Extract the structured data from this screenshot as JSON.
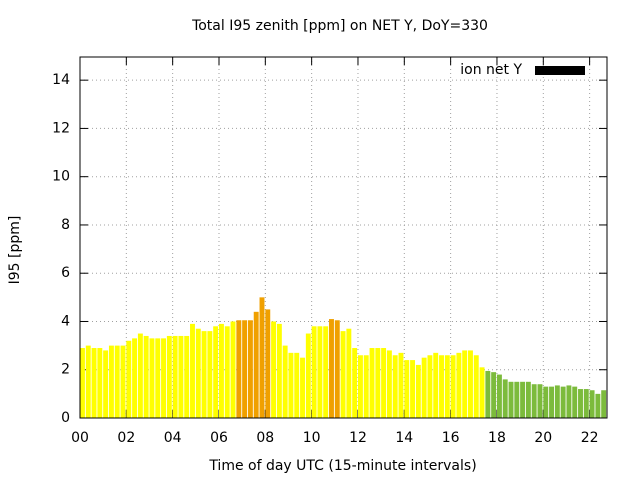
{
  "chart_data": {
    "type": "bar",
    "title": "Total I95 zenith [ppm] on NET Y, DoY=330",
    "x_label": "Time of day UTC (15-minute intervals)",
    "y_label": "I95 [ppm]",
    "x": [
      0,
      0.25,
      0.5,
      0.75,
      1,
      1.25,
      1.5,
      1.75,
      2,
      2.25,
      2.5,
      2.75,
      3,
      3.25,
      3.5,
      3.75,
      4,
      4.25,
      4.5,
      4.75,
      5,
      5.25,
      5.5,
      5.75,
      6,
      6.25,
      6.5,
      6.75,
      7,
      7.25,
      7.5,
      7.75,
      8,
      8.25,
      8.5,
      8.75,
      9,
      9.25,
      9.5,
      9.75,
      10,
      10.25,
      10.5,
      10.75,
      11,
      11.25,
      11.5,
      11.75,
      12,
      12.25,
      12.5,
      12.75,
      13,
      13.25,
      13.5,
      13.75,
      14,
      14.25,
      14.5,
      14.75,
      15,
      15.25,
      15.5,
      15.75,
      16,
      16.25,
      16.5,
      16.75,
      17,
      17.25,
      17.5,
      17.75,
      18,
      18.25,
      18.5,
      18.75,
      19,
      19.25,
      19.5,
      19.75,
      20,
      20.25,
      20.5,
      20.75,
      21,
      21.25,
      21.5,
      21.75,
      22,
      22.25,
      22.5
    ],
    "series": [
      {
        "name": "ion net Y",
        "color": "#000000",
        "values": [
          2.9,
          3.0,
          2.9,
          2.9,
          2.8,
          3.0,
          3.0,
          3.0,
          3.2,
          3.3,
          3.5,
          3.4,
          3.3,
          3.3,
          3.3,
          3.4,
          3.4,
          3.4,
          3.4,
          3.9,
          3.7,
          3.6,
          3.6,
          3.8,
          3.9,
          3.8,
          4.0,
          4.05,
          4.05,
          4.05,
          4.4,
          5.0,
          4.5,
          4.0,
          3.9,
          3.0,
          2.7,
          2.7,
          2.5,
          3.5,
          3.8,
          3.8,
          3.8,
          4.1,
          4.05,
          3.6,
          3.7,
          2.9,
          2.6,
          2.6,
          2.9,
          2.9,
          2.9,
          2.8,
          2.6,
          2.7,
          2.4,
          2.4,
          2.2,
          2.5,
          2.6,
          2.7,
          2.6,
          2.6,
          2.6,
          2.7,
          2.8,
          2.8,
          2.6,
          2.1,
          1.95,
          1.9,
          1.8,
          1.6,
          1.5,
          1.5,
          1.5,
          1.5,
          1.4,
          1.4,
          1.3,
          1.3,
          1.35,
          1.3,
          1.35,
          1.3,
          1.2,
          1.2,
          1.15,
          1.0,
          1.15
        ],
        "colors": [
          "#ffff00",
          "#ffff00",
          "#ffff00",
          "#ffff00",
          "#ffff00",
          "#ffff00",
          "#ffff00",
          "#ffff00",
          "#ffff00",
          "#ffff00",
          "#ffff00",
          "#ffff00",
          "#ffff00",
          "#ffff00",
          "#ffff00",
          "#ffff00",
          "#ffff00",
          "#ffff00",
          "#ffff00",
          "#ffff00",
          "#ffff00",
          "#ffff00",
          "#ffff00",
          "#ffff00",
          "#ffff00",
          "#ffff00",
          "#ffff00",
          "#f0a000",
          "#f0a000",
          "#f0a000",
          "#f0a000",
          "#f0a000",
          "#f0a000",
          "#ffff00",
          "#ffff00",
          "#ffff00",
          "#ffff00",
          "#ffff00",
          "#ffff00",
          "#ffff00",
          "#ffff00",
          "#ffff00",
          "#ffff00",
          "#f0a000",
          "#f0a000",
          "#ffff00",
          "#ffff00",
          "#ffff00",
          "#ffff00",
          "#ffff00",
          "#ffff00",
          "#ffff00",
          "#ffff00",
          "#ffff00",
          "#ffff00",
          "#ffff00",
          "#ffff00",
          "#ffff00",
          "#ffff00",
          "#ffff00",
          "#ffff00",
          "#ffff00",
          "#ffff00",
          "#ffff00",
          "#ffff00",
          "#ffff00",
          "#ffff00",
          "#ffff00",
          "#ffff00",
          "#ffff00",
          "#7cbb3c",
          "#7cbb3c",
          "#7cbb3c",
          "#7cbb3c",
          "#7cbb3c",
          "#7cbb3c",
          "#7cbb3c",
          "#7cbb3c",
          "#7cbb3c",
          "#7cbb3c",
          "#7cbb3c",
          "#7cbb3c",
          "#7cbb3c",
          "#7cbb3c",
          "#7cbb3c",
          "#7cbb3c",
          "#7cbb3c",
          "#7cbb3c",
          "#7cbb3c",
          "#7cbb3c",
          "#7cbb3c"
        ]
      }
    ],
    "xlim": [
      0,
      22.75
    ],
    "xticks": [
      {
        "value": 0,
        "label": "00"
      },
      {
        "value": 2,
        "label": "02"
      },
      {
        "value": 4,
        "label": "04"
      },
      {
        "value": 6,
        "label": "06"
      },
      {
        "value": 8,
        "label": "08"
      },
      10,
      12,
      14,
      16,
      18,
      20,
      22
    ],
    "ylim": [
      0,
      14.96
    ],
    "yticks": [
      0,
      2,
      4,
      6,
      8,
      10,
      12,
      14
    ],
    "grid": true,
    "legend": "top-right"
  }
}
